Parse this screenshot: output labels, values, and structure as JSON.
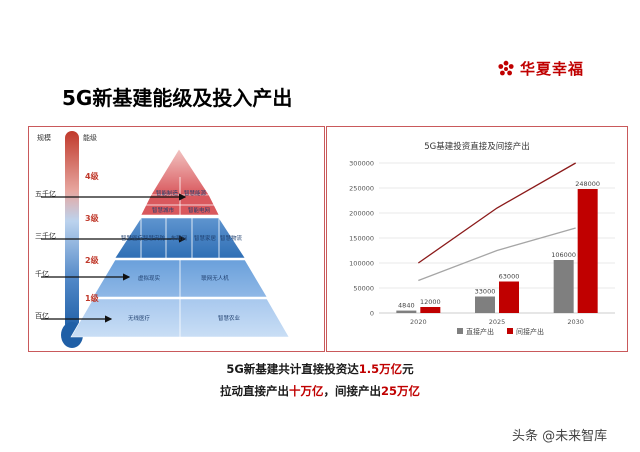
{
  "header": {
    "title": "5G新基建能级及投入产出",
    "brand": "华夏幸福",
    "brand_color": "#c00000",
    "brand_icon": "red-flower-logo"
  },
  "left_diagram": {
    "col_scale": "规模",
    "col_level": "能级",
    "scale_labels": [
      "五千亿",
      "三千亿",
      "千亿",
      "百亿"
    ],
    "level_labels": [
      "4级",
      "3级",
      "2级",
      "1级"
    ],
    "tiers": [
      [
        "智能制造",
        "智慧能源",
        "智慧城市",
        "智能电网"
      ],
      [
        "智慧医疗",
        "智慧安防",
        "车联网",
        "智慧家居",
        "智慧物流"
      ],
      [
        "虚拟现实",
        "联网无人机"
      ],
      [
        "无线医疗",
        "智慧农业"
      ]
    ]
  },
  "chart_data": {
    "type": "bar",
    "title": "5G基建投资直接及间接产出",
    "categories": [
      "2020",
      "2025",
      "2030"
    ],
    "series": [
      {
        "name": "直接产出",
        "values": [
          4840,
          33000,
          106000
        ],
        "color": "#7f7f7f"
      },
      {
        "name": "间接产出",
        "values": [
          12000,
          63000,
          248000
        ],
        "color": "#c00000"
      }
    ],
    "overlay_lines": [
      {
        "color": "#8b1a1a",
        "values": [
          100000,
          210000,
          300000
        ]
      },
      {
        "color": "#a6a6a6",
        "values": [
          65000,
          125000,
          170000
        ]
      }
    ],
    "ylim": [
      0,
      300000
    ],
    "yticks": [
      "0",
      "50000",
      "100000",
      "150000",
      "200000",
      "250000",
      "300000"
    ],
    "grid": true,
    "legend": "bottom"
  },
  "summary": {
    "line1_prefix": "5G新基建共计直接投资达",
    "line1_value": "1.5万亿",
    "line1_suffix": "元",
    "line2_prefix": "拉动直接产出",
    "line2_value1": "十万亿",
    "line2_mid": "，间接产出",
    "line2_value2": "25万亿"
  },
  "watermark": "头条 @未来智库"
}
